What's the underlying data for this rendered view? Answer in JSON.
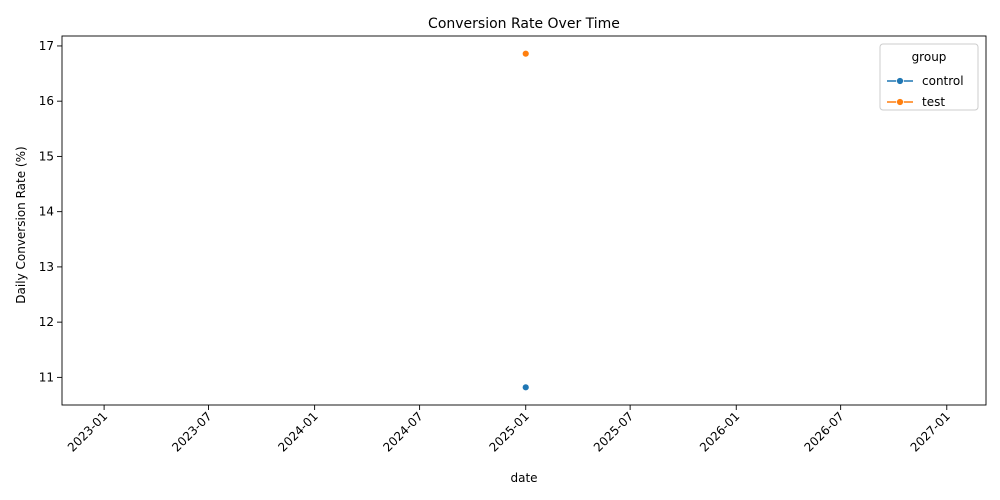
{
  "chart_data": {
    "type": "line",
    "title": "Conversion Rate Over Time",
    "xlabel": "date",
    "ylabel": "Daily Conversion Rate (%)",
    "x_type": "date",
    "xlim": [
      "2022-10-20",
      "2027-03-10"
    ],
    "ylim": [
      10.5,
      17.18
    ],
    "x_ticks": [
      "2023-01",
      "2023-07",
      "2024-01",
      "2024-07",
      "2025-01",
      "2025-07",
      "2026-01",
      "2026-07",
      "2027-01"
    ],
    "y_ticks": [
      11,
      12,
      13,
      14,
      15,
      16,
      17
    ],
    "legend": {
      "title": "group",
      "position": "top-right"
    },
    "grid": false,
    "series": [
      {
        "name": "control",
        "color": "#1f77b4",
        "marker": "circle",
        "points": [
          {
            "x": "2025-01-01",
            "y": 10.82
          }
        ]
      },
      {
        "name": "test",
        "color": "#ff7f0e",
        "marker": "circle",
        "points": [
          {
            "x": "2025-01-01",
            "y": 16.86
          }
        ]
      }
    ]
  }
}
